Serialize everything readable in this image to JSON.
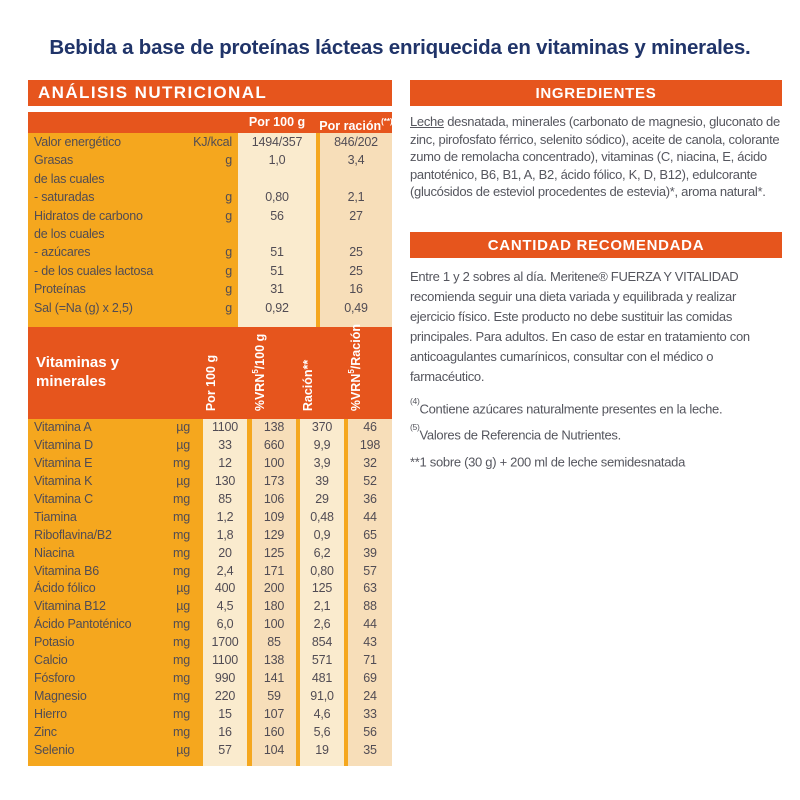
{
  "page_title": "Bebida a base de proteínas lácteas enriquecida en vitaminas y minerales.",
  "brand_colors": {
    "accent_orange": "#E6551D",
    "table_yellow": "#F5A71E",
    "cream_light": "#FAEBCE",
    "cream_dark": "#F7DEB9",
    "title_navy": "#203469"
  },
  "nutrition_panel": {
    "title": "ANÁLISIS NUTRICIONAL",
    "header": {
      "col1": "Por 100 g",
      "col2_pre": "Por ración",
      "col2_sup": "(**)"
    },
    "macro_rows": [
      {
        "label": "Valor energético",
        "unit": "KJ/kcal",
        "per100": "1494/357",
        "racion": "846/202"
      },
      {
        "label": "Grasas",
        "unit": "g",
        "per100": "1,0",
        "racion": "3,4"
      },
      {
        "label": "de las cuales",
        "unit": "",
        "per100": "",
        "racion": ""
      },
      {
        "label": "- saturadas",
        "unit": "g",
        "per100": "0,80",
        "racion": "2,1"
      },
      {
        "label": "Hidratos de carbono",
        "unit": "g",
        "per100": "56",
        "racion": "27"
      },
      {
        "label": "de los cuales",
        "unit": "",
        "per100": "",
        "racion": ""
      },
      {
        "label": "- azúcares",
        "unit": "g",
        "per100": "51",
        "racion": "25"
      },
      {
        "label": "- de los cuales lactosa",
        "unit": "g",
        "per100": "51",
        "racion": "25"
      },
      {
        "label": "Proteínas",
        "unit": "g",
        "per100": "31",
        "racion": "16"
      },
      {
        "label": "Sal (=Na (g) x 2,5)",
        "unit": "g",
        "per100": "0,92",
        "racion": "0,49"
      }
    ],
    "vitamins_header": {
      "title_line1": "Vitaminas y",
      "title_line2": "minerales",
      "columns": [
        {
          "pre": "Por 100 g",
          "sup": "",
          "post": ""
        },
        {
          "pre": "%VRN",
          "sup": "5",
          "post": "/100 g"
        },
        {
          "pre": "Ración**",
          "sup": "",
          "post": ""
        },
        {
          "pre": "%VRN",
          "sup": "5",
          "post": "/Ración"
        }
      ]
    },
    "vitamin_rows": [
      {
        "label": "Vitamina A",
        "unit": "µg",
        "per100": "1100",
        "vrn100": "138",
        "racion": "370",
        "vrnracion": "46"
      },
      {
        "label": "Vitamina D",
        "unit": "µg",
        "per100": "33",
        "vrn100": "660",
        "racion": "9,9",
        "vrnracion": "198"
      },
      {
        "label": "Vitamina E",
        "unit": "mg",
        "per100": "12",
        "vrn100": "100",
        "racion": "3,9",
        "vrnracion": "32"
      },
      {
        "label": "Vitamina K",
        "unit": "µg",
        "per100": "130",
        "vrn100": "173",
        "racion": "39",
        "vrnracion": "52"
      },
      {
        "label": "Vitamina C",
        "unit": "mg",
        "per100": "85",
        "vrn100": "106",
        "racion": "29",
        "vrnracion": "36"
      },
      {
        "label": "Tiamina",
        "unit": "mg",
        "per100": "1,2",
        "vrn100": "109",
        "racion": "0,48",
        "vrnracion": "44"
      },
      {
        "label": "Riboflavina/B2",
        "unit": "mg",
        "per100": "1,8",
        "vrn100": "129",
        "racion": "0,9",
        "vrnracion": "65"
      },
      {
        "label": "Niacina",
        "unit": "mg",
        "per100": "20",
        "vrn100": "125",
        "racion": "6,2",
        "vrnracion": "39"
      },
      {
        "label": "Vitamina B6",
        "unit": "mg",
        "per100": "2,4",
        "vrn100": "171",
        "racion": "0,80",
        "vrnracion": "57"
      },
      {
        "label": "Ácido fólico",
        "unit": "µg",
        "per100": "400",
        "vrn100": "200",
        "racion": "125",
        "vrnracion": "63"
      },
      {
        "label": "Vitamina B12",
        "unit": "µg",
        "per100": "4,5",
        "vrn100": "180",
        "racion": "2,1",
        "vrnracion": "88"
      },
      {
        "label": "Ácido Pantoténico",
        "unit": "mg",
        "per100": "6,0",
        "vrn100": "100",
        "racion": "2,6",
        "vrnracion": "44"
      },
      {
        "label": "Potasio",
        "unit": "mg",
        "per100": "1700",
        "vrn100": "85",
        "racion": "854",
        "vrnracion": "43"
      },
      {
        "label": "Calcio",
        "unit": "mg",
        "per100": "1100",
        "vrn100": "138",
        "racion": "571",
        "vrnracion": "71"
      },
      {
        "label": "Fósforo",
        "unit": "mg",
        "per100": "990",
        "vrn100": "141",
        "racion": "481",
        "vrnracion": "69"
      },
      {
        "label": "Magnesio",
        "unit": "mg",
        "per100": "220",
        "vrn100": "59",
        "racion": "91,0",
        "vrnracion": "24"
      },
      {
        "label": "Hierro",
        "unit": "mg",
        "per100": "15",
        "vrn100": "107",
        "racion": "4,6",
        "vrnracion": "33"
      },
      {
        "label": "Zinc",
        "unit": "mg",
        "per100": "16",
        "vrn100": "160",
        "racion": "5,6",
        "vrnracion": "56"
      },
      {
        "label": "Selenio",
        "unit": "µg",
        "per100": "57",
        "vrn100": "104",
        "racion": "19",
        "vrnracion": "35"
      }
    ]
  },
  "ingredients": {
    "title": "INGREDIENTES",
    "lead": "Leche",
    "body": " desnatada, minerales (carbonato de magnesio, gluconato de zinc, pirofosfato férrico, selenito sódico), aceite de canola, colorante zumo de remolacha concentrado), vitaminas (C, niacina, E, ácido pantoténico, B6, B1, A, B2, ácido fólico, K, D, B12), edulcorante (glucósidos de esteviol procedentes de estevia)*, aroma natural*."
  },
  "recommended": {
    "title": "CANTIDAD RECOMENDADA",
    "body": "Entre 1 y 2 sobres al día. Meritene® FUERZA Y VITALIDAD recomienda seguir una dieta variada y equilibrada y realizar ejercicio físico. Este producto no debe sustituir las comidas principales. Para adultos. En caso de estar en tratamiento con anticoagulantes cumarínicos, consultar con el médico o farmacéutico."
  },
  "footnotes": [
    {
      "sup": "(4)",
      "text": "Contiene azúcares naturalmente presentes en la leche."
    },
    {
      "sup": "(5)",
      "text": "Valores de Referencia de Nutrientes."
    },
    {
      "sup": "",
      "text": "**1 sobre (30 g) + 200 ml de leche semidesnatada"
    }
  ]
}
